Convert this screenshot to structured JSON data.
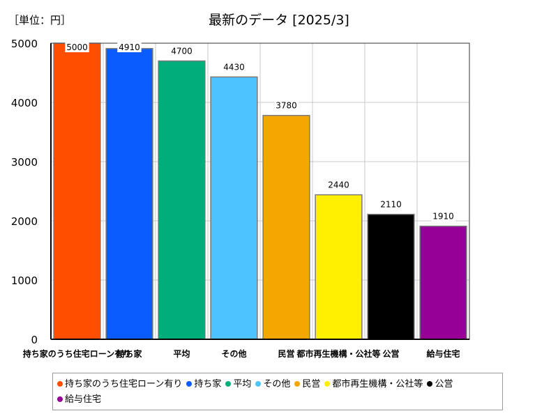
{
  "unit_label": "［単位：円］",
  "chart_data": {
    "type": "bar",
    "title": "最新のデータ [2025/3]",
    "xlabel": "",
    "ylabel": "",
    "ylim": [
      0,
      5000
    ],
    "yticks": [
      0,
      1000,
      2000,
      3000,
      4000,
      5000
    ],
    "grid": true,
    "legend_position": "bottom",
    "categories": [
      "持ち家のうち住宅ローン有り",
      "持ち家",
      "平均",
      "その他",
      "民営",
      "都市再生機構・公社等",
      "公営",
      "給与住宅"
    ],
    "tick_labels": [
      "持ち家のうち住宅ローン有り",
      "持ち家",
      "平均",
      "その他",
      "民営",
      "都市再生機構・公社等",
      "公営",
      "給与住宅"
    ],
    "values": [
      5000,
      4910,
      4700,
      4430,
      3780,
      2440,
      2110,
      1910
    ],
    "data_labels": [
      "5000",
      "4910",
      "4700",
      "4430",
      "3780",
      "2440",
      "2110",
      "1910"
    ],
    "colors": [
      "#ff4e00",
      "#0a5cff",
      "#00ae7c",
      "#4dc3ff",
      "#f5a600",
      "#fff000",
      "#000000",
      "#960096"
    ]
  }
}
